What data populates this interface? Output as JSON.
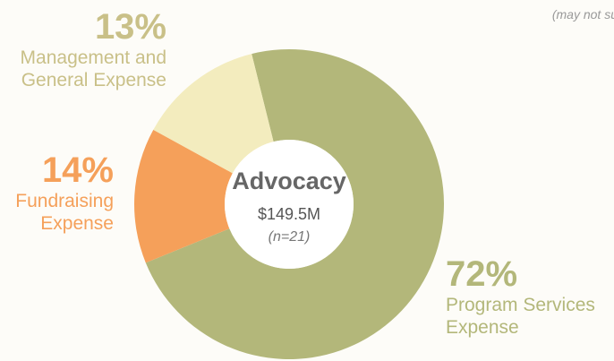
{
  "chart_data": {
    "type": "donut",
    "title": "Advocacy",
    "subtitle": "$149.5M",
    "sample": "(n=21)",
    "note": "(may not su",
    "categories": [
      "Program Services Expense",
      "Fundraising Expense",
      "Management and General Expense"
    ],
    "values": [
      72,
      14,
      13
    ],
    "value_labels": [
      "72%",
      "14%",
      "13%"
    ],
    "colors": [
      "#b3b77a",
      "#f5a05a",
      "#f3ecbe"
    ],
    "label_colors": [
      "#b3b77a",
      "#f5a05a",
      "#c9c088"
    ]
  }
}
